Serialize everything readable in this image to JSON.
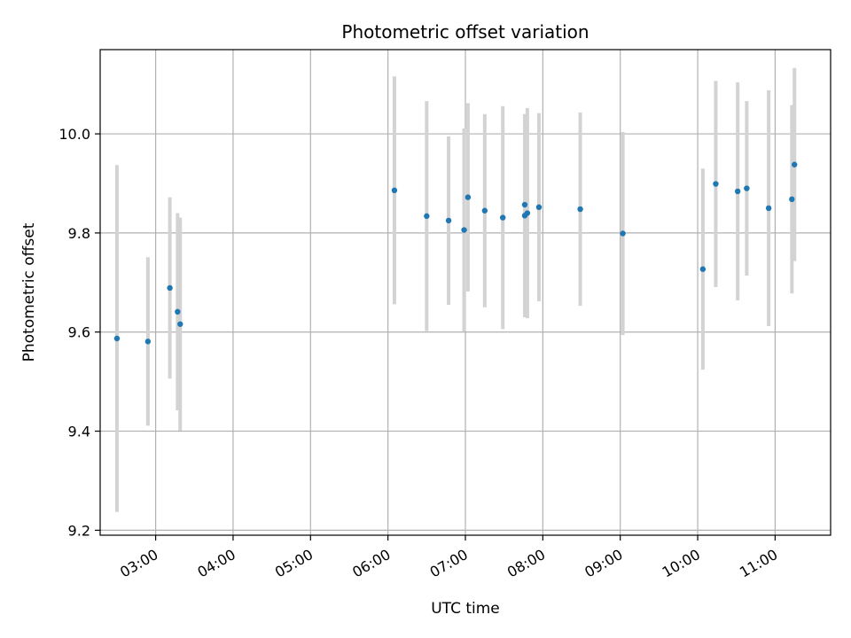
{
  "chart_data": {
    "type": "scatter",
    "title": "Photometric offset variation",
    "xlabel": "UTC time",
    "ylabel": "Photometric offset",
    "x_axis": {
      "kind": "time",
      "range": [
        "02:17",
        "11:43"
      ],
      "ticks": [
        "03:00",
        "04:00",
        "05:00",
        "06:00",
        "07:00",
        "08:00",
        "09:00",
        "10:00",
        "11:00"
      ],
      "tick_label_rotation_deg": 30
    },
    "y_axis": {
      "range": [
        9.19,
        10.17
      ],
      "ticks": [
        9.2,
        9.4,
        9.6,
        9.8,
        10.0
      ],
      "tick_labels": [
        "9.2",
        "9.4",
        "9.6",
        "9.8",
        "10.0"
      ]
    },
    "grid": true,
    "colors": {
      "point": "#1f77b4",
      "errorbar": "#d3d3d3",
      "grid": "#b0b0b0"
    },
    "points": [
      {
        "x": "02:30",
        "y": 9.587,
        "err": 0.35
      },
      {
        "x": "02:54",
        "y": 9.581,
        "err": 0.17
      },
      {
        "x": "03:11",
        "y": 9.689,
        "err": 0.183
      },
      {
        "x": "03:17",
        "y": 9.641,
        "err": 0.199
      },
      {
        "x": "03:19",
        "y": 9.616,
        "err": 0.215
      },
      {
        "x": "06:05",
        "y": 9.886,
        "err": 0.23
      },
      {
        "x": "06:30",
        "y": 9.834,
        "err": 0.232
      },
      {
        "x": "06:47",
        "y": 9.825,
        "err": 0.17
      },
      {
        "x": "06:59",
        "y": 9.806,
        "err": 0.205
      },
      {
        "x": "07:02",
        "y": 9.872,
        "err": 0.19
      },
      {
        "x": "07:15",
        "y": 9.845,
        "err": 0.195
      },
      {
        "x": "07:29",
        "y": 9.831,
        "err": 0.225
      },
      {
        "x": "07:46",
        "y": 9.835,
        "err": 0.205
      },
      {
        "x": "07:46",
        "y": 9.857,
        "err": 0.18
      },
      {
        "x": "07:48",
        "y": 9.84,
        "err": 0.212
      },
      {
        "x": "07:57",
        "y": 9.852,
        "err": 0.19
      },
      {
        "x": "08:29",
        "y": 9.848,
        "err": 0.195
      },
      {
        "x": "09:02",
        "y": 9.799,
        "err": 0.205
      },
      {
        "x": "10:04",
        "y": 9.727,
        "err": 0.203
      },
      {
        "x": "10:14",
        "y": 9.899,
        "err": 0.208
      },
      {
        "x": "10:31",
        "y": 9.884,
        "err": 0.22
      },
      {
        "x": "10:38",
        "y": 9.89,
        "err": 0.176
      },
      {
        "x": "10:55",
        "y": 9.85,
        "err": 0.238
      },
      {
        "x": "11:13",
        "y": 9.868,
        "err": 0.19
      },
      {
        "x": "11:15",
        "y": 9.938,
        "err": 0.195
      }
    ]
  }
}
